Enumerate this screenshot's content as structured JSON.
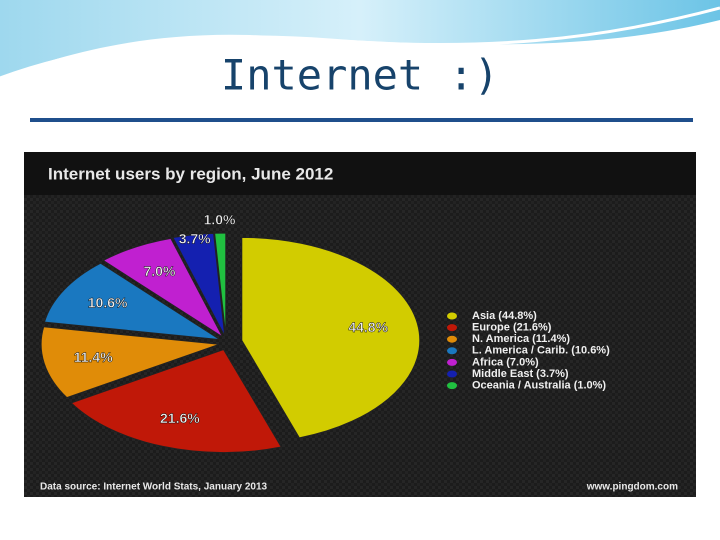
{
  "slide_title": "Internet :)",
  "chart_data": {
    "type": "pie",
    "title": "Internet users by region, June 2012",
    "categories": [
      "Asia (44.8%)",
      "Europe (21.6%)",
      "N. America (11.4%)",
      "L. America / Carib. (10.6%)",
      "Africa (7.0%)",
      "Middle East (3.7%)",
      "Oceania / Australia (1.0%)"
    ],
    "values": [
      44.8,
      21.6,
      11.4,
      10.6,
      7.0,
      3.7,
      1.0
    ],
    "value_labels": [
      "44.8%",
      "21.6%",
      "11.4%",
      "10.6%",
      "7.0%",
      "3.7%",
      "1.0%"
    ],
    "colors": [
      "#d2cc00",
      "#c01808",
      "#e08c08",
      "#1a78c0",
      "#c020d0",
      "#1420b0",
      "#20c040"
    ],
    "source": "Data source: Internet World Stats, January 2013",
    "credit": "www.pingdom.com"
  }
}
